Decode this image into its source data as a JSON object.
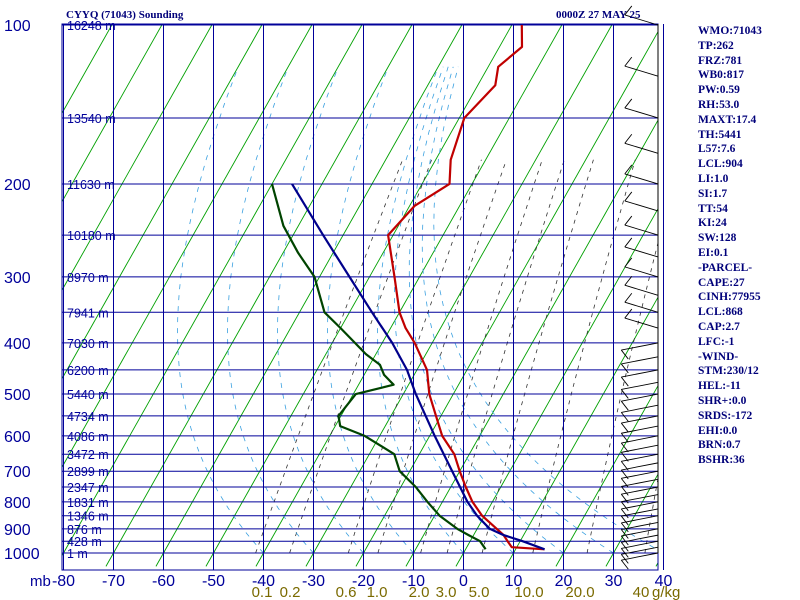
{
  "title_left": "CYYQ (71043) Sounding",
  "title_right": "0000Z 27 MAY 25",
  "axis_unit_pressure": "mb",
  "axis_unit_mixing": "g/kg",
  "colors": {
    "grid": "#00009a",
    "temperature": "#c00000",
    "dewpoint": "#004400",
    "parcel": "#00008b",
    "isotherm_diag": "#00a000",
    "dry_adiabat": "#333333",
    "moist_adiabat": "#3aa0e0",
    "index_text": "#00007a"
  },
  "indices": [
    "WMO:71043",
    "TP:262",
    "FRZ:781",
    "WB0:817",
    "PW:0.59",
    "RH:53.0",
    "MAXT:17.4",
    "TH:5441",
    "L57:7.6",
    "LCL:904",
    "LI:1.0",
    "SI:1.7",
    "TT:54",
    "KI:24",
    "SW:128",
    "EI:0.1",
    "-PARCEL-",
    "CAPE:27",
    "CINH:77955",
    "LCL:868",
    "CAP:2.7",
    "LFC:-1",
    "-WIND-",
    "STM:230/12",
    "HEL:-11",
    "SHR+:0.0",
    "SRDS:-172",
    "EHI:0.0",
    "BRN:0.7",
    "BSHR:36"
  ],
  "chart_data": {
    "type": "skew-t",
    "title": "CYYQ (71043) Sounding",
    "valid_time": "0000Z 27 MAY 25",
    "pressure_ticks": [
      "100",
      "200",
      "300",
      "400",
      "500",
      "600",
      "700",
      "800",
      "900",
      "1000"
    ],
    "temperature_ticks": [
      "-80",
      "-70",
      "-60",
      "-50",
      "-40",
      "-30",
      "-20",
      "-10",
      "0",
      "10",
      "20",
      "30",
      "40"
    ],
    "mixing_ratio_ticks": [
      "0.1",
      "0.2",
      "0.6",
      "1.0",
      "2.0",
      "3.0",
      "5.0",
      "10.0",
      "20.0",
      "40"
    ],
    "height_labels": [
      {
        "p": 100,
        "label": "16248 m"
      },
      {
        "p": 150,
        "label": "13540 m"
      },
      {
        "p": 200,
        "label": "11630 m"
      },
      {
        "p": 250,
        "label": "10180 m"
      },
      {
        "p": 300,
        "label": "8970 m"
      },
      {
        "p": 350,
        "label": "7941 m"
      },
      {
        "p": 400,
        "label": "7030 m"
      },
      {
        "p": 450,
        "label": "6200 m"
      },
      {
        "p": 500,
        "label": "5440 m"
      },
      {
        "p": 550,
        "label": "4734 m"
      },
      {
        "p": 600,
        "label": "4086 m"
      },
      {
        "p": 650,
        "label": "3472 m"
      },
      {
        "p": 700,
        "label": "2899 m"
      },
      {
        "p": 750,
        "label": "2347 m"
      },
      {
        "p": 800,
        "label": "1831 m"
      },
      {
        "p": 850,
        "label": "1346 m"
      },
      {
        "p": 900,
        "label": "876 m"
      },
      {
        "p": 950,
        "label": "428 m"
      },
      {
        "p": 1000,
        "label": "1 m"
      }
    ],
    "series": [
      {
        "name": "temperature",
        "points": [
          [
            984,
            15.8
          ],
          [
            975,
            9.0
          ],
          [
            950,
            7.5
          ],
          [
            925,
            6.0
          ],
          [
            900,
            3.9
          ],
          [
            850,
            -0.5
          ],
          [
            800,
            -4.0
          ],
          [
            750,
            -7.0
          ],
          [
            700,
            -10.0
          ],
          [
            650,
            -13.0
          ],
          [
            600,
            -17.5
          ],
          [
            550,
            -21.0
          ],
          [
            500,
            -24.8
          ],
          [
            450,
            -28.0
          ],
          [
            400,
            -33.5
          ],
          [
            375,
            -37.0
          ],
          [
            350,
            -40.0
          ],
          [
            300,
            -45.0
          ],
          [
            250,
            -51.0
          ],
          [
            220,
            -49.0
          ],
          [
            200,
            -44.5
          ],
          [
            180,
            -47.0
          ],
          [
            150,
            -49.0
          ],
          [
            130,
            -46.5
          ],
          [
            120,
            -48.0
          ],
          [
            110,
            -45.5
          ],
          [
            100,
            -48.0
          ]
        ]
      },
      {
        "name": "dewpoint",
        "points": [
          [
            984,
            4.0
          ],
          [
            950,
            2.0
          ],
          [
            925,
            -1.0
          ],
          [
            900,
            -4.0
          ],
          [
            850,
            -9.0
          ],
          [
            800,
            -13.0
          ],
          [
            750,
            -17.0
          ],
          [
            700,
            -22.0
          ],
          [
            650,
            -25.0
          ],
          [
            600,
            -33.0
          ],
          [
            575,
            -39.0
          ],
          [
            550,
            -40.5
          ],
          [
            500,
            -39.5
          ],
          [
            480,
            -33.0
          ],
          [
            460,
            -36.0
          ],
          [
            440,
            -38.0
          ],
          [
            420,
            -42.0
          ],
          [
            375,
            -50.0
          ],
          [
            350,
            -55.0
          ],
          [
            300,
            -61.0
          ],
          [
            270,
            -67.0
          ],
          [
            240,
            -73.0
          ],
          [
            200,
            -80.0
          ]
        ]
      },
      {
        "name": "parcel",
        "points": [
          [
            984,
            15.8
          ],
          [
            950,
            10.5
          ],
          [
            925,
            6.0
          ],
          [
            900,
            2.5
          ],
          [
            850,
            -1.5
          ],
          [
            800,
            -5.0
          ],
          [
            700,
            -11.5
          ],
          [
            600,
            -19.0
          ],
          [
            500,
            -27.5
          ],
          [
            450,
            -32.0
          ],
          [
            400,
            -38.0
          ],
          [
            350,
            -45.5
          ],
          [
            300,
            -54.0
          ],
          [
            250,
            -64.0
          ],
          [
            200,
            -76.0
          ]
        ]
      }
    ]
  }
}
